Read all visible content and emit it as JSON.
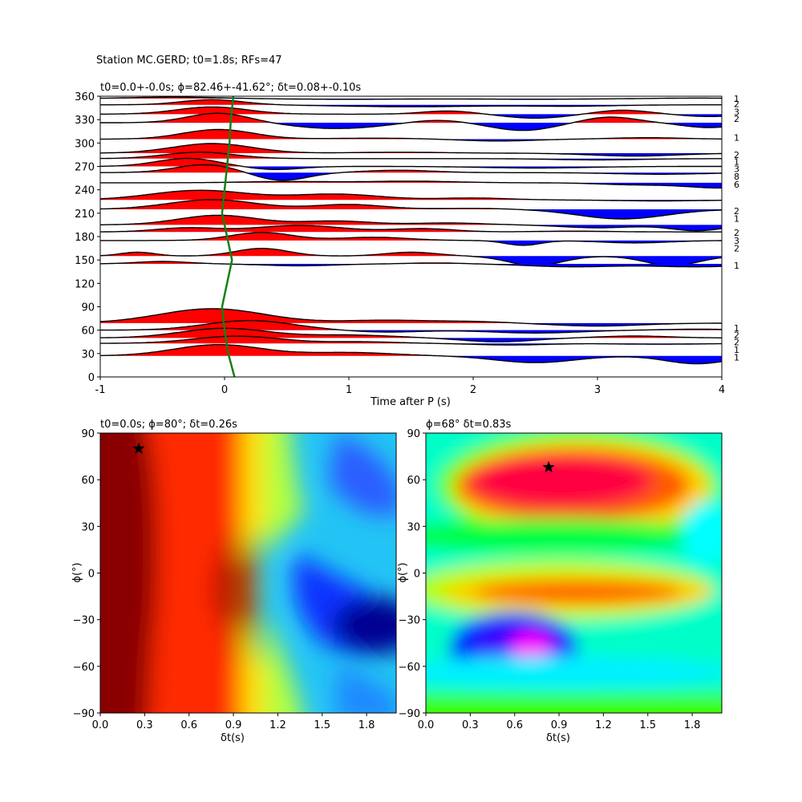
{
  "figure": {
    "suptitle": "Station MC.GERD; t0=1.8s; RFs=47"
  },
  "chart_data": [
    {
      "type": "line",
      "name": "receiver-function-stack",
      "title": "t0=0.0+-0.0s; ϕ=82.46+-41.62°; δt=0.08+-0.10s",
      "xlabel": "Time after P (s)",
      "ylabel": "",
      "xlim": [
        -1,
        4
      ],
      "ylim": [
        0,
        360
      ],
      "xticks": [
        -1,
        0,
        1,
        2,
        3,
        4
      ],
      "yticks": [
        0,
        30,
        60,
        90,
        120,
        150,
        180,
        210,
        240,
        270,
        300,
        330,
        360
      ],
      "fill_positive_color": "#ff0000",
      "fill_negative_color": "#0000ff",
      "trace_color": "#000000",
      "moveout_color": "#158015",
      "moveout_curve": {
        "y": [
          0,
          30,
          60,
          90,
          120,
          150,
          180,
          210,
          240,
          270,
          300,
          330,
          360
        ],
        "x": [
          0.08,
          0.03,
          0.0,
          -0.02,
          0.02,
          0.06,
          0.02,
          -0.02,
          0.0,
          0.02,
          0.04,
          0.05,
          0.07
        ]
      },
      "count_labels": [
        {
          "baz": 357,
          "count": "1"
        },
        {
          "baz": 350,
          "count": "2"
        },
        {
          "baz": 340,
          "count": "3"
        },
        {
          "baz": 331,
          "count": "2"
        },
        {
          "baz": 307,
          "count": "1"
        },
        {
          "baz": 285,
          "count": "2"
        },
        {
          "baz": 276,
          "count": "1"
        },
        {
          "baz": 267,
          "count": "3"
        },
        {
          "baz": 257,
          "count": "8"
        },
        {
          "baz": 247,
          "count": "6"
        },
        {
          "baz": 213,
          "count": "2"
        },
        {
          "baz": 203,
          "count": "1"
        },
        {
          "baz": 185,
          "count": "2"
        },
        {
          "baz": 175,
          "count": "3"
        },
        {
          "baz": 165,
          "count": "2"
        },
        {
          "baz": 143,
          "count": "1"
        },
        {
          "baz": 63,
          "count": "1"
        },
        {
          "baz": 54,
          "count": "2"
        },
        {
          "baz": 45,
          "count": "2"
        },
        {
          "baz": 35,
          "count": "1"
        },
        {
          "baz": 25,
          "count": "1"
        }
      ],
      "traces": [
        {
          "baz": 357,
          "amp": 3,
          "peaks": [
            [
              -0.4,
              0.6,
              0.5
            ],
            [
              1.0,
              -0.3,
              0.7
            ],
            [
              2.5,
              -0.3,
              0.6
            ],
            [
              3.8,
              0.2,
              0.4
            ]
          ]
        },
        {
          "baz": 349,
          "amp": 8,
          "peaks": [
            [
              -0.1,
              0.8,
              0.35
            ],
            [
              1.5,
              -0.3,
              0.8
            ],
            [
              2.8,
              -0.2,
              0.5
            ]
          ]
        },
        {
          "baz": 337,
          "amp": 10,
          "peaks": [
            [
              -0.1,
              0.9,
              0.4
            ],
            [
              1.8,
              0.4,
              0.3
            ],
            [
              2.5,
              -0.5,
              0.35
            ],
            [
              3.2,
              0.5,
              0.3
            ],
            [
              3.9,
              -0.3,
              0.3
            ]
          ]
        },
        {
          "baz": 326,
          "amp": 12,
          "peaks": [
            [
              -0.05,
              1.0,
              0.35
            ],
            [
              0.9,
              -0.6,
              0.5
            ],
            [
              1.7,
              0.3,
              0.3
            ],
            [
              2.4,
              -0.8,
              0.35
            ],
            [
              3.1,
              0.6,
              0.3
            ],
            [
              3.9,
              -0.5,
              0.3
            ]
          ]
        },
        {
          "baz": 305,
          "amp": 12,
          "peaks": [
            [
              -0.05,
              1.0,
              0.4
            ],
            [
              1.2,
              0.1,
              0.5
            ],
            [
              2.2,
              -0.2,
              0.4
            ],
            [
              3.4,
              0.15,
              0.4
            ]
          ]
        },
        {
          "baz": 287,
          "amp": 12,
          "peaks": [
            [
              -0.1,
              1.0,
              0.45
            ],
            [
              1.4,
              0.1,
              0.5
            ],
            [
              3.3,
              -0.3,
              0.5
            ]
          ]
        },
        {
          "baz": 280,
          "amp": 8,
          "peaks": [
            [
              -0.2,
              1.0,
              0.4
            ],
            [
              1.0,
              0.0,
              0.5
            ],
            [
              3.0,
              -0.2,
              0.5
            ]
          ]
        },
        {
          "baz": 270,
          "amp": 10,
          "peaks": [
            [
              -0.3,
              1.0,
              0.35
            ],
            [
              0.4,
              -0.4,
              0.3
            ],
            [
              2.5,
              -0.2,
              0.6
            ]
          ]
        },
        {
          "baz": 262,
          "amp": 10,
          "peaks": [
            [
              -0.15,
              1.0,
              0.35
            ],
            [
              0.45,
              -1.0,
              0.3
            ],
            [
              1.4,
              0.3,
              0.4
            ],
            [
              3.5,
              -0.2,
              0.5
            ]
          ]
        },
        {
          "baz": 249,
          "amp": 8,
          "peaks": [
            [
              0.5,
              0.2,
              0.5
            ],
            [
              1.5,
              0.25,
              0.5
            ],
            [
              3.3,
              -0.3,
              0.4
            ],
            [
              4.0,
              -0.8,
              0.4
            ]
          ]
        },
        {
          "baz": 227,
          "amp": 12,
          "peaks": [
            [
              -0.2,
              1.0,
              0.55
            ],
            [
              0.9,
              0.6,
              0.5
            ],
            [
              2.0,
              0.2,
              0.4
            ],
            [
              3.5,
              -0.1,
              0.5
            ]
          ]
        },
        {
          "baz": 215,
          "amp": 12,
          "peaks": [
            [
              -0.1,
              1.0,
              0.5
            ],
            [
              1.0,
              0.5,
              0.4
            ],
            [
              2.0,
              0.1,
              0.4
            ],
            [
              3.2,
              -1.0,
              0.5
            ]
          ]
        },
        {
          "baz": 195,
          "amp": 12,
          "peaks": [
            [
              -0.05,
              1.0,
              0.45
            ],
            [
              0.9,
              0.4,
              0.4
            ],
            [
              1.8,
              0.2,
              0.4
            ],
            [
              3.0,
              -0.3,
              0.4
            ],
            [
              3.8,
              -0.6,
              0.3
            ]
          ]
        },
        {
          "baz": 186,
          "amp": 10,
          "peaks": [
            [
              -0.3,
              0.5,
              0.35
            ],
            [
              0.6,
              0.8,
              0.5
            ],
            [
              1.6,
              0.4,
              0.35
            ],
            [
              2.8,
              0.1,
              0.4
            ]
          ]
        },
        {
          "baz": 175,
          "amp": 10,
          "peaks": [
            [
              0.3,
              1.0,
              0.35
            ],
            [
              1.2,
              0.4,
              0.4
            ],
            [
              2.4,
              -0.6,
              0.2
            ],
            [
              3.3,
              -0.3,
              0.4
            ]
          ]
        },
        {
          "baz": 155,
          "amp": 12,
          "peaks": [
            [
              -0.7,
              0.4,
              0.2
            ],
            [
              0.3,
              0.8,
              0.3
            ],
            [
              1.5,
              0.4,
              0.3
            ],
            [
              2.5,
              -1.0,
              0.3
            ],
            [
              3.6,
              -1.0,
              0.3
            ]
          ]
        },
        {
          "baz": 145,
          "amp": 6,
          "peaks": [
            [
              -0.5,
              0.5,
              0.3
            ],
            [
              0.6,
              -0.4,
              0.4
            ],
            [
              1.7,
              0.2,
              0.3
            ],
            [
              2.8,
              -0.6,
              0.5
            ],
            [
              3.8,
              -0.6,
              0.5
            ]
          ]
        },
        {
          "baz": 69,
          "amp": 18,
          "peaks": [
            [
              -0.1,
              1.0,
              0.6
            ],
            [
              1.3,
              0.2,
              0.5
            ],
            [
              2.0,
              0.1,
              0.4
            ],
            [
              3.0,
              -0.2,
              0.5
            ]
          ]
        },
        {
          "baz": 60,
          "amp": 12,
          "peaks": [
            [
              0.2,
              1.0,
              0.5
            ],
            [
              1.3,
              -0.2,
              0.4
            ],
            [
              2.5,
              -0.3,
              0.5
            ],
            [
              3.8,
              0.1,
              0.4
            ]
          ]
        },
        {
          "baz": 50,
          "amp": 12,
          "peaks": [
            [
              0.0,
              1.0,
              0.5
            ],
            [
              1.0,
              0.3,
              0.5
            ],
            [
              2.2,
              -0.4,
              0.4
            ],
            [
              3.3,
              0.2,
              0.4
            ]
          ]
        },
        {
          "baz": 43,
          "amp": 10,
          "peaks": [
            [
              0.1,
              0.9,
              0.5
            ],
            [
              1.1,
              0.2,
              0.4
            ],
            [
              2.3,
              -0.2,
              0.4
            ],
            [
              3.5,
              -0.1,
              0.5
            ]
          ]
        },
        {
          "baz": 27,
          "amp": 14,
          "peaks": [
            [
              -0.05,
              1.0,
              0.5
            ],
            [
              1.0,
              0.3,
              0.5
            ],
            [
              2.5,
              -0.6,
              0.45
            ],
            [
              3.8,
              -0.7,
              0.35
            ]
          ]
        }
      ]
    },
    {
      "type": "heatmap",
      "name": "grid-search-left",
      "title": "t0=0.0s; ϕ=80°; δt=0.26s",
      "xlabel": "δt(s)",
      "ylabel": "ϕ(°)",
      "xlim": [
        0,
        2
      ],
      "ylim": [
        -90,
        90
      ],
      "xticks": [
        "0.0",
        "0.3",
        "0.6",
        "0.9",
        "1.2",
        "1.5",
        "1.8"
      ],
      "yticks": [
        "90",
        "60",
        "30",
        "0",
        "−30",
        "−60",
        "−90"
      ],
      "colormap": "jet",
      "best": {
        "dt": 0.26,
        "phi": 80
      }
    },
    {
      "type": "heatmap",
      "name": "grid-search-right",
      "title": "ϕ=68° δt=0.83s",
      "xlabel": "δt(s)",
      "ylabel": "ϕ(°)",
      "xlim": [
        0,
        2
      ],
      "ylim": [
        -90,
        90
      ],
      "xticks": [
        "0.0",
        "0.3",
        "0.6",
        "0.9",
        "1.2",
        "1.5",
        "1.8"
      ],
      "yticks": [
        "90",
        "60",
        "30",
        "0",
        "−30",
        "−60",
        "−90"
      ],
      "colormap": "gist_rainbow",
      "best": {
        "dt": 0.83,
        "phi": 68
      }
    }
  ]
}
